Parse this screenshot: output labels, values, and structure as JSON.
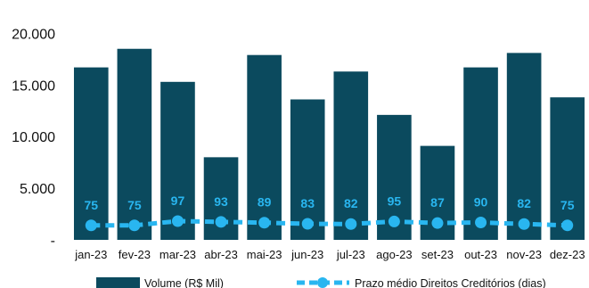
{
  "chart_data": {
    "type": "bar",
    "categories": [
      "jan-23",
      "fev-23",
      "mar-23",
      "abr-23",
      "mai-23",
      "jun-23",
      "jul-23",
      "ago-23",
      "set-23",
      "out-23",
      "nov-23",
      "dez-23"
    ],
    "series": [
      {
        "name": "Volume (R$ Mil)",
        "type": "bar",
        "axis": "left",
        "color": "#0b4a5e",
        "values": [
          16700,
          18500,
          15300,
          8000,
          17900,
          13600,
          16300,
          12100,
          9100,
          16700,
          18100,
          13800
        ]
      },
      {
        "name": "Prazo médio Direitos Creditórios (dias)",
        "type": "line",
        "axis": "secondary",
        "style": "dashed",
        "color": "#29b6f0",
        "values": [
          75,
          75,
          97,
          93,
          89,
          83,
          82,
          95,
          87,
          90,
          82,
          75
        ],
        "labels": [
          "75",
          "75",
          "97",
          "93",
          "89",
          "83",
          "82",
          "95",
          "87",
          "90",
          "82",
          "75"
        ]
      }
    ],
    "yticks": [
      "-",
      "5.000",
      "10.000",
      "15.000",
      "20.000"
    ],
    "ylim": [
      0,
      21500
    ],
    "secondary_axis_visible": false,
    "grid": false,
    "legend_position": "bottom"
  }
}
